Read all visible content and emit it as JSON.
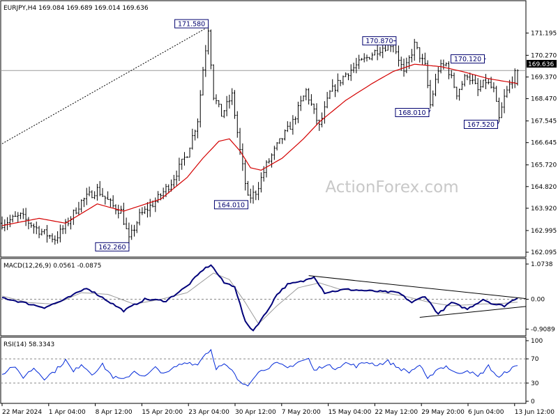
{
  "header": {
    "symbol_info": "EURJPY,H4  169.084 169.689 169.014 169.636"
  },
  "watermark": "ActionForex.com",
  "price_tag": "169.636",
  "colors": {
    "candles": "#000000",
    "sma": "#d40000",
    "macd": "#00007a",
    "signal": "#9a9a9a",
    "rsi": "#0028d8",
    "trendline": "#000000"
  },
  "chart_data": [
    {
      "type": "candlestick",
      "title": "EURJPY,H4",
      "last_bar": {
        "open": 169.084,
        "high": 169.689,
        "low": 169.014,
        "close": 169.636
      },
      "y_ticks": [
        "171.195",
        "170.270",
        "169.370",
        "168.470",
        "167.545",
        "166.645",
        "165.720",
        "164.820",
        "163.920",
        "162.995",
        "162.095"
      ],
      "ylim": [
        161.98,
        172.45
      ],
      "x_ticks": [
        "22 Mar 2024",
        "1 Apr 04:00",
        "8 Apr 12:00",
        "15 Apr 20:00",
        "23 Apr 04:00",
        "30 Apr 12:00",
        "7 May 20:00",
        "15 May 04:00",
        "22 May 12:00",
        "29 May 20:00",
        "6 Jun 04:00",
        "13 Jun 12:00"
      ],
      "key_points": [
        {
          "t": 0,
          "v": 163.3
        },
        {
          "t": 7,
          "v": 163.6
        },
        {
          "t": 14,
          "v": 163.0
        },
        {
          "t": 20,
          "v": 162.65
        },
        {
          "t": 24,
          "v": 163.2
        },
        {
          "t": 30,
          "v": 164.2
        },
        {
          "t": 36,
          "v": 164.7
        },
        {
          "t": 42,
          "v": 164.0
        },
        {
          "t": 45,
          "v": 163.8
        },
        {
          "t": 48,
          "v": 162.6
        },
        {
          "t": 52,
          "v": 163.6
        },
        {
          "t": 58,
          "v": 164.2
        },
        {
          "t": 64,
          "v": 165.0
        },
        {
          "t": 70,
          "v": 166.2
        },
        {
          "t": 74,
          "v": 167.6
        },
        {
          "t": 76,
          "v": 169.7
        },
        {
          "t": 78,
          "v": 171.4
        },
        {
          "t": 80,
          "v": 168.6
        },
        {
          "t": 83,
          "v": 167.8
        },
        {
          "t": 87,
          "v": 168.6
        },
        {
          "t": 90,
          "v": 166.3
        },
        {
          "t": 93,
          "v": 164.3
        },
        {
          "t": 96,
          "v": 164.6
        },
        {
          "t": 100,
          "v": 165.7
        },
        {
          "t": 104,
          "v": 166.5
        },
        {
          "t": 110,
          "v": 167.5
        },
        {
          "t": 115,
          "v": 168.8
        },
        {
          "t": 120,
          "v": 167.3
        },
        {
          "t": 124,
          "v": 168.7
        },
        {
          "t": 130,
          "v": 169.5
        },
        {
          "t": 136,
          "v": 170.0
        },
        {
          "t": 142,
          "v": 170.5
        },
        {
          "t": 148,
          "v": 170.8
        },
        {
          "t": 152,
          "v": 169.5
        },
        {
          "t": 156,
          "v": 170.7
        },
        {
          "t": 160,
          "v": 169.8
        },
        {
          "t": 162,
          "v": 168.2
        },
        {
          "t": 165,
          "v": 169.7
        },
        {
          "t": 168,
          "v": 169.9
        },
        {
          "t": 172,
          "v": 168.7
        },
        {
          "t": 176,
          "v": 169.5
        },
        {
          "t": 180,
          "v": 168.8
        },
        {
          "t": 183,
          "v": 169.2
        },
        {
          "t": 186,
          "v": 168.8
        },
        {
          "t": 188,
          "v": 167.6
        },
        {
          "t": 190,
          "v": 168.5
        },
        {
          "t": 193,
          "v": 169.3
        },
        {
          "t": 195,
          "v": 169.636
        }
      ],
      "sma_points": [
        {
          "t": 0,
          "v": 163.2
        },
        {
          "t": 14,
          "v": 163.5
        },
        {
          "t": 24,
          "v": 163.3
        },
        {
          "t": 36,
          "v": 164.1
        },
        {
          "t": 46,
          "v": 163.8
        },
        {
          "t": 60,
          "v": 164.3
        },
        {
          "t": 70,
          "v": 165.2
        },
        {
          "t": 76,
          "v": 166.0
        },
        {
          "t": 82,
          "v": 166.7
        },
        {
          "t": 86,
          "v": 166.8
        },
        {
          "t": 90,
          "v": 166.3
        },
        {
          "t": 94,
          "v": 165.6
        },
        {
          "t": 98,
          "v": 165.5
        },
        {
          "t": 106,
          "v": 166.0
        },
        {
          "t": 114,
          "v": 166.8
        },
        {
          "t": 120,
          "v": 167.5
        },
        {
          "t": 130,
          "v": 168.4
        },
        {
          "t": 140,
          "v": 169.1
        },
        {
          "t": 148,
          "v": 169.6
        },
        {
          "t": 156,
          "v": 169.9
        },
        {
          "t": 166,
          "v": 169.8
        },
        {
          "t": 174,
          "v": 169.6
        },
        {
          "t": 184,
          "v": 169.3
        },
        {
          "t": 195,
          "v": 169.1
        }
      ],
      "annotations": [
        {
          "label": "171.580",
          "t": 78,
          "v": 171.58
        },
        {
          "label": "162.260",
          "t": 48,
          "v": 162.26
        },
        {
          "label": "164.010",
          "t": 93,
          "v": 164.01
        },
        {
          "label": "170.870",
          "t": 148,
          "v": 170.87
        },
        {
          "label": "168.010",
          "t": 162,
          "v": 168.01
        },
        {
          "label": "170.120",
          "t": 183,
          "v": 170.12
        },
        {
          "label": "167.520",
          "t": 188,
          "v": 167.52
        }
      ],
      "trendline": {
        "t1": 0,
        "v1": 166.6,
        "t2": 78,
        "v2": 171.45
      }
    },
    {
      "type": "line",
      "title": "MACD(12,26,9) 0.0561 -0.0875",
      "y_ticks": [
        "1.0738",
        "0.00",
        "-0.9089"
      ],
      "ylim": [
        -1.05,
        1.18
      ],
      "macd_points": [
        {
          "t": 0,
          "v": 0.05
        },
        {
          "t": 8,
          "v": -0.1
        },
        {
          "t": 16,
          "v": -0.25
        },
        {
          "t": 24,
          "v": 0.0
        },
        {
          "t": 32,
          "v": 0.35
        },
        {
          "t": 38,
          "v": 0.05
        },
        {
          "t": 46,
          "v": -0.35
        },
        {
          "t": 54,
          "v": 0.0
        },
        {
          "t": 62,
          "v": -0.05
        },
        {
          "t": 70,
          "v": 0.4
        },
        {
          "t": 76,
          "v": 0.9
        },
        {
          "t": 79,
          "v": 1.05
        },
        {
          "t": 84,
          "v": 0.5
        },
        {
          "t": 88,
          "v": 0.4
        },
        {
          "t": 92,
          "v": -0.7
        },
        {
          "t": 95,
          "v": -0.95
        },
        {
          "t": 100,
          "v": -0.4
        },
        {
          "t": 104,
          "v": 0.15
        },
        {
          "t": 108,
          "v": 0.45
        },
        {
          "t": 114,
          "v": 0.55
        },
        {
          "t": 118,
          "v": 0.7
        },
        {
          "t": 122,
          "v": 0.2
        },
        {
          "t": 130,
          "v": 0.3
        },
        {
          "t": 140,
          "v": 0.25
        },
        {
          "t": 150,
          "v": 0.2
        },
        {
          "t": 155,
          "v": -0.1
        },
        {
          "t": 160,
          "v": 0.1
        },
        {
          "t": 165,
          "v": -0.45
        },
        {
          "t": 170,
          "v": -0.1
        },
        {
          "t": 176,
          "v": -0.3
        },
        {
          "t": 182,
          "v": 0.0
        },
        {
          "t": 186,
          "v": -0.15
        },
        {
          "t": 190,
          "v": -0.2
        },
        {
          "t": 195,
          "v": 0.06
        }
      ],
      "signal_points": [
        {
          "t": 0,
          "v": 0.1
        },
        {
          "t": 10,
          "v": -0.1
        },
        {
          "t": 20,
          "v": -0.15
        },
        {
          "t": 30,
          "v": 0.2
        },
        {
          "t": 40,
          "v": 0.15
        },
        {
          "t": 50,
          "v": -0.15
        },
        {
          "t": 60,
          "v": 0.0
        },
        {
          "t": 70,
          "v": 0.2
        },
        {
          "t": 80,
          "v": 0.8
        },
        {
          "t": 86,
          "v": 0.6
        },
        {
          "t": 92,
          "v": -0.1
        },
        {
          "t": 97,
          "v": -0.75
        },
        {
          "t": 104,
          "v": -0.2
        },
        {
          "t": 112,
          "v": 0.35
        },
        {
          "t": 120,
          "v": 0.5
        },
        {
          "t": 128,
          "v": 0.3
        },
        {
          "t": 140,
          "v": 0.25
        },
        {
          "t": 152,
          "v": 0.1
        },
        {
          "t": 162,
          "v": -0.1
        },
        {
          "t": 170,
          "v": -0.2
        },
        {
          "t": 180,
          "v": -0.15
        },
        {
          "t": 190,
          "v": -0.12
        },
        {
          "t": 195,
          "v": -0.0875
        }
      ],
      "trendlines": [
        {
          "t1": 116,
          "v1": 0.72,
          "t2": 195,
          "v2": 0.02
        },
        {
          "t1": 158,
          "v1": -0.55,
          "t2": 195,
          "v2": -0.22
        }
      ]
    },
    {
      "type": "line",
      "title": "RSI(14) 58.3343",
      "y_ticks": [
        "100",
        "70",
        "30",
        "0"
      ],
      "ylim": [
        0,
        100
      ],
      "levels": [
        70,
        30
      ],
      "rsi_points": [
        {
          "t": 0,
          "v": 45
        },
        {
          "t": 4,
          "v": 58
        },
        {
          "t": 8,
          "v": 40
        },
        {
          "t": 12,
          "v": 55
        },
        {
          "t": 16,
          "v": 38
        },
        {
          "t": 20,
          "v": 50
        },
        {
          "t": 24,
          "v": 68
        },
        {
          "t": 27,
          "v": 48
        },
        {
          "t": 30,
          "v": 62
        },
        {
          "t": 34,
          "v": 45
        },
        {
          "t": 38,
          "v": 60
        },
        {
          "t": 42,
          "v": 40
        },
        {
          "t": 46,
          "v": 35
        },
        {
          "t": 50,
          "v": 50
        },
        {
          "t": 54,
          "v": 40
        },
        {
          "t": 58,
          "v": 55
        },
        {
          "t": 62,
          "v": 45
        },
        {
          "t": 66,
          "v": 58
        },
        {
          "t": 70,
          "v": 65
        },
        {
          "t": 74,
          "v": 60
        },
        {
          "t": 76,
          "v": 75
        },
        {
          "t": 79,
          "v": 85
        },
        {
          "t": 81,
          "v": 55
        },
        {
          "t": 84,
          "v": 60
        },
        {
          "t": 87,
          "v": 50
        },
        {
          "t": 90,
          "v": 30
        },
        {
          "t": 93,
          "v": 28
        },
        {
          "t": 96,
          "v": 45
        },
        {
          "t": 100,
          "v": 55
        },
        {
          "t": 104,
          "v": 62
        },
        {
          "t": 108,
          "v": 55
        },
        {
          "t": 112,
          "v": 65
        },
        {
          "t": 116,
          "v": 70
        },
        {
          "t": 118,
          "v": 50
        },
        {
          "t": 122,
          "v": 60
        },
        {
          "t": 126,
          "v": 55
        },
        {
          "t": 130,
          "v": 63
        },
        {
          "t": 134,
          "v": 58
        },
        {
          "t": 138,
          "v": 65
        },
        {
          "t": 142,
          "v": 60
        },
        {
          "t": 146,
          "v": 66
        },
        {
          "t": 150,
          "v": 55
        },
        {
          "t": 154,
          "v": 48
        },
        {
          "t": 158,
          "v": 60
        },
        {
          "t": 161,
          "v": 35
        },
        {
          "t": 164,
          "v": 52
        },
        {
          "t": 168,
          "v": 58
        },
        {
          "t": 172,
          "v": 45
        },
        {
          "t": 176,
          "v": 52
        },
        {
          "t": 180,
          "v": 40
        },
        {
          "t": 184,
          "v": 58
        },
        {
          "t": 188,
          "v": 38
        },
        {
          "t": 191,
          "v": 50
        },
        {
          "t": 195,
          "v": 58.3
        }
      ]
    }
  ]
}
